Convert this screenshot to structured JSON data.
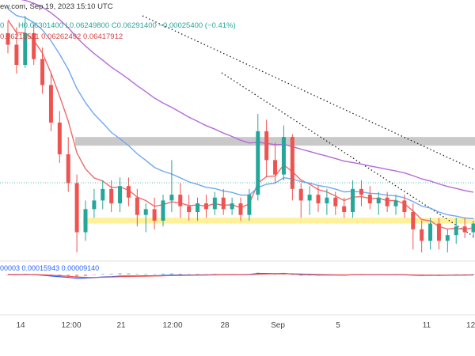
{
  "header": {
    "source": "ew.com",
    "timestamp": "Sep 19, 2023 15:10 UTC",
    "ohlc": "H0.06301400 L0.06249800 C0.06291400 −0.00025400 (−0.41%)",
    "ohlc_open_partial": "0",
    "ma_line": "0.06215511  0.06262492  0.06417912",
    "macd_line": "00003  0.00015943  0.00009140"
  },
  "colors": {
    "up": "#26a69a",
    "down": "#ef5350",
    "ma_fast": "#f06a6a",
    "ma_mid": "#6fa8f0",
    "ma_slow": "#b56ad8",
    "resistance_zone": "#c9c9c9",
    "support_zone": "#fff19a",
    "trendline": "#222222"
  },
  "x_axis": {
    "ticks": [
      "14",
      "12:00",
      "21",
      "12:00",
      "28",
      "Sep",
      "5",
      "11",
      "12:"
    ]
  },
  "chart_data": {
    "type": "candlestick",
    "x_ticks": [
      "14",
      "12:00",
      "21",
      "12:00",
      "28",
      "Sep",
      "5",
      "11",
      "12:"
    ],
    "price_range": [
      0.0583,
      0.0668
    ],
    "candles_ohlc": [
      [
        0.0662,
        0.0666,
        0.0655,
        0.0658
      ],
      [
        0.0658,
        0.0664,
        0.0648,
        0.0651
      ],
      [
        0.0651,
        0.0668,
        0.065,
        0.0662
      ],
      [
        0.0662,
        0.0665,
        0.0651,
        0.0653
      ],
      [
        0.0653,
        0.0657,
        0.0641,
        0.0644
      ],
      [
        0.0644,
        0.0648,
        0.0628,
        0.0631
      ],
      [
        0.0631,
        0.0635,
        0.0617,
        0.062
      ],
      [
        0.062,
        0.0626,
        0.0607,
        0.061
      ],
      [
        0.061,
        0.0613,
        0.0586,
        0.0593
      ],
      [
        0.0593,
        0.0604,
        0.059,
        0.0601
      ],
      [
        0.0601,
        0.0608,
        0.0598,
        0.0604
      ],
      [
        0.0604,
        0.0611,
        0.0601,
        0.0608
      ],
      [
        0.0608,
        0.0611,
        0.06,
        0.0603
      ],
      [
        0.0603,
        0.0612,
        0.06,
        0.0609
      ],
      [
        0.0609,
        0.0612,
        0.0602,
        0.0605
      ],
      [
        0.0605,
        0.0608,
        0.0595,
        0.0599
      ],
      [
        0.0599,
        0.0603,
        0.0593,
        0.0601
      ],
      [
        0.0601,
        0.0605,
        0.0594,
        0.0597
      ],
      [
        0.0597,
        0.0606,
        0.0595,
        0.0604
      ],
      [
        0.0604,
        0.0618,
        0.06,
        0.0606
      ],
      [
        0.0606,
        0.061,
        0.0598,
        0.0602
      ],
      [
        0.0602,
        0.0606,
        0.0597,
        0.06
      ],
      [
        0.06,
        0.0605,
        0.0597,
        0.0603
      ],
      [
        0.0603,
        0.0606,
        0.0598,
        0.0601
      ],
      [
        0.0601,
        0.0607,
        0.0599,
        0.0605
      ],
      [
        0.0605,
        0.0608,
        0.0599,
        0.0601
      ],
      [
        0.0601,
        0.0605,
        0.0599,
        0.0603
      ],
      [
        0.0603,
        0.0605,
        0.0597,
        0.0599
      ],
      [
        0.0599,
        0.0608,
        0.0597,
        0.0606
      ],
      [
        0.0606,
        0.0634,
        0.0604,
        0.0628
      ],
      [
        0.0628,
        0.0632,
        0.0612,
        0.0618
      ],
      [
        0.0618,
        0.0624,
        0.061,
        0.0613
      ],
      [
        0.0613,
        0.063,
        0.0611,
        0.0626
      ],
      [
        0.0626,
        0.0627,
        0.0604,
        0.0608
      ],
      [
        0.0608,
        0.061,
        0.0598,
        0.0604
      ],
      [
        0.0604,
        0.0609,
        0.0599,
        0.0606
      ],
      [
        0.0606,
        0.0609,
        0.06,
        0.0603
      ],
      [
        0.0603,
        0.0608,
        0.0599,
        0.0605
      ],
      [
        0.0605,
        0.0607,
        0.0599,
        0.0602
      ],
      [
        0.0602,
        0.0605,
        0.0598,
        0.06
      ],
      [
        0.06,
        0.0611,
        0.0598,
        0.0608
      ],
      [
        0.0608,
        0.0611,
        0.0602,
        0.0606
      ],
      [
        0.0606,
        0.0609,
        0.0601,
        0.0603
      ],
      [
        0.0603,
        0.0607,
        0.0599,
        0.0605
      ],
      [
        0.0605,
        0.0607,
        0.06,
        0.0602
      ],
      [
        0.0602,
        0.0606,
        0.0599,
        0.0604
      ],
      [
        0.0604,
        0.0606,
        0.0598,
        0.06
      ],
      [
        0.06,
        0.0603,
        0.0587,
        0.0594
      ],
      [
        0.0594,
        0.0597,
        0.0586,
        0.059
      ],
      [
        0.059,
        0.0598,
        0.0587,
        0.0596
      ],
      [
        0.0596,
        0.0598,
        0.0587,
        0.059
      ],
      [
        0.059,
        0.0594,
        0.0586,
        0.0592
      ],
      [
        0.0592,
        0.0598,
        0.0589,
        0.0595
      ],
      [
        0.0595,
        0.0598,
        0.0591,
        0.0593
      ],
      [
        0.0593,
        0.0597,
        0.0591,
        0.0596
      ]
    ],
    "resistance_zone": [
      0.0623,
      0.0626
    ],
    "support_zone": [
      0.0596,
      0.0598
    ]
  }
}
